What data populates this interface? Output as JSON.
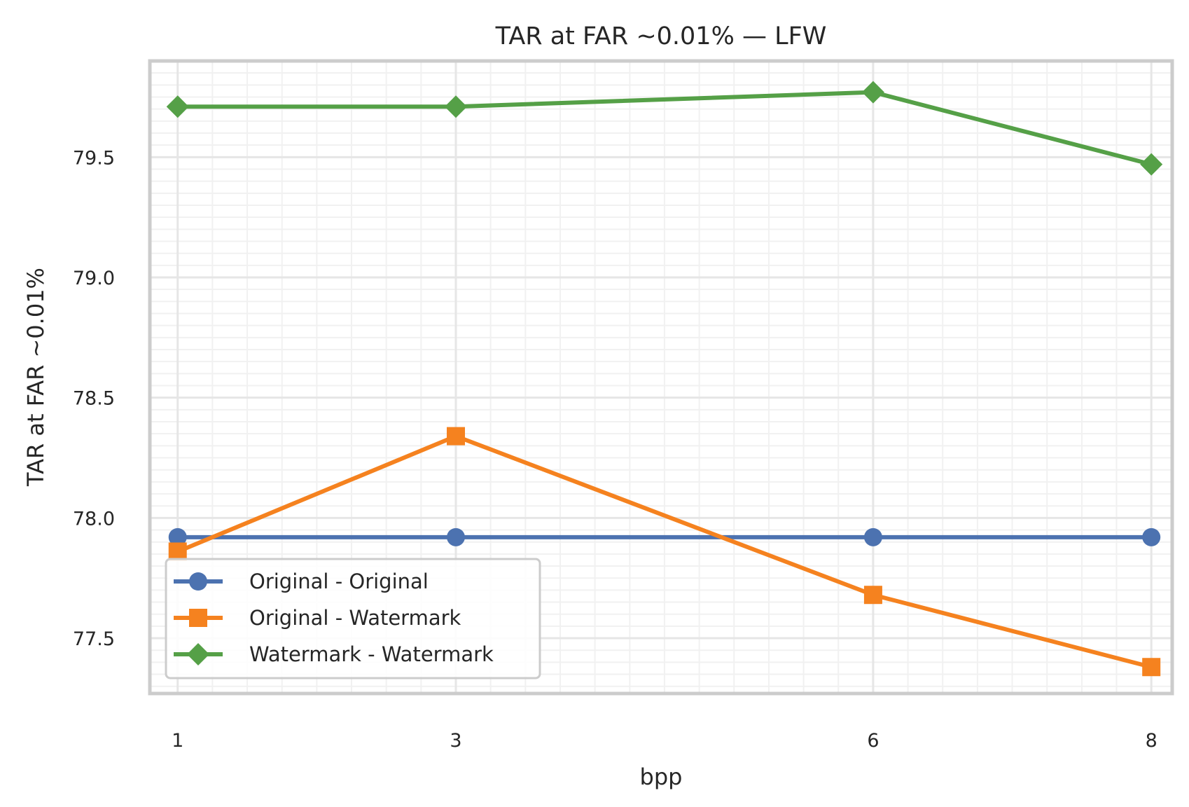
{
  "chart_data": {
    "type": "line",
    "title": "TAR at FAR ~0.01% — LFW",
    "xlabel": "bpp",
    "ylabel": "TAR at FAR ~0.01%",
    "x": [
      1,
      3,
      6,
      8
    ],
    "x_ticks": [
      "1",
      "3",
      "6",
      "8"
    ],
    "xlim": [
      0.8,
      8.15
    ],
    "ylim": [
      77.27,
      79.9
    ],
    "y_ticks": [
      77.5,
      78.0,
      78.5,
      79.0,
      79.5
    ],
    "y_tick_labels": [
      "77.5",
      "78.0",
      "78.5",
      "79.0",
      "79.5"
    ],
    "grid": true,
    "legend_position": "lower-left",
    "series": [
      {
        "name": "Original - Original",
        "values": [
          77.92,
          77.92,
          77.92,
          77.92
        ],
        "color": "#4c72b0",
        "marker": "circle"
      },
      {
        "name": "Original - Watermark",
        "values": [
          77.86,
          78.34,
          77.68,
          77.38
        ],
        "color": "#f5821f",
        "marker": "square"
      },
      {
        "name": "Watermark - Watermark",
        "values": [
          79.71,
          79.71,
          79.77,
          79.47
        ],
        "color": "#55a047",
        "marker": "diamond"
      }
    ]
  }
}
